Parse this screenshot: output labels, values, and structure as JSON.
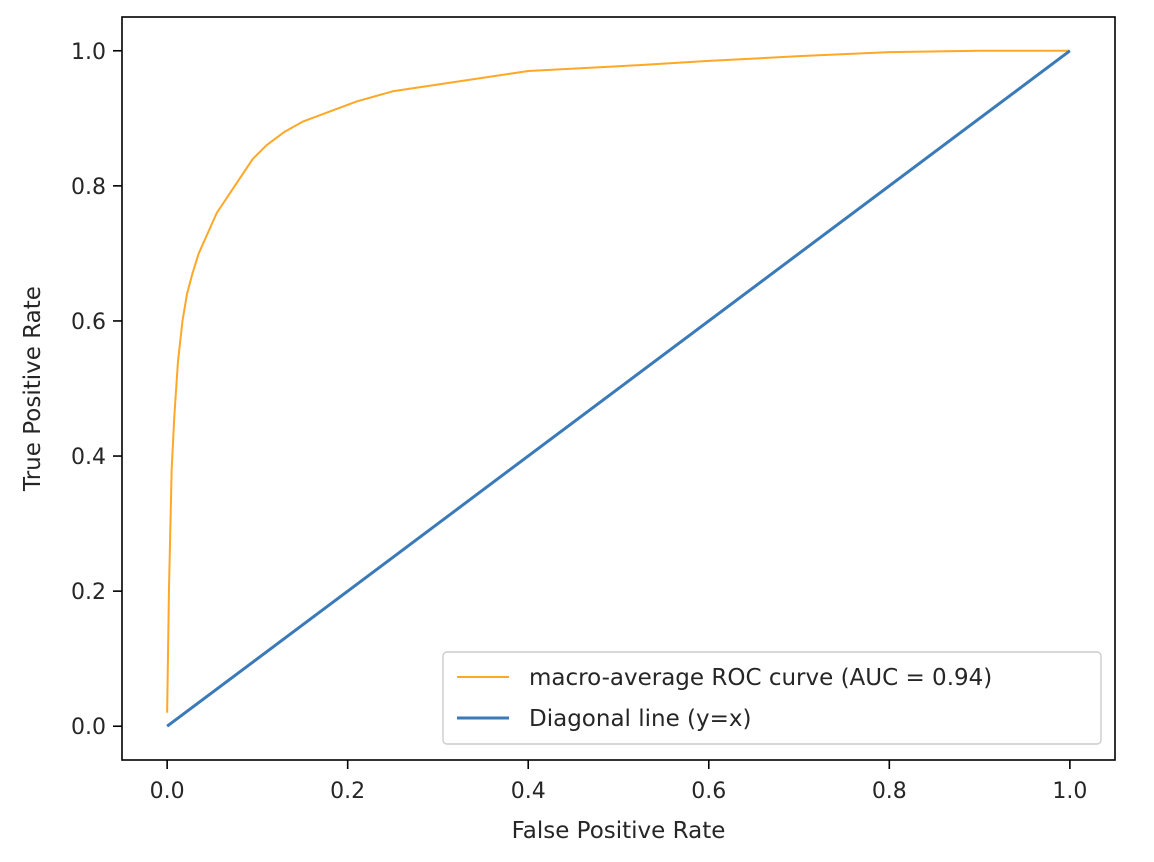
{
  "chart_data": {
    "type": "line",
    "title": "",
    "xlabel": "False Positive Rate",
    "ylabel": "True Positive Rate",
    "xlim": [
      -0.05,
      1.05
    ],
    "ylim": [
      -0.05,
      1.05
    ],
    "xticks": [
      0.0,
      0.2,
      0.4,
      0.6,
      0.8,
      1.0
    ],
    "yticks": [
      0.0,
      0.2,
      0.4,
      0.6,
      0.8,
      1.0
    ],
    "xtick_labels": [
      "0.0",
      "0.2",
      "0.4",
      "0.6",
      "0.8",
      "1.0"
    ],
    "ytick_labels": [
      "0.0",
      "0.2",
      "0.4",
      "0.6",
      "0.8",
      "1.0"
    ],
    "grid": false,
    "legend_position": "lower-right",
    "series": [
      {
        "name": "macro-average ROC curve (AUC = 0.94)",
        "color": "#ffa726",
        "x": [
          0.0,
          0.002,
          0.005,
          0.008,
          0.012,
          0.017,
          0.022,
          0.028,
          0.035,
          0.045,
          0.055,
          0.065,
          0.08,
          0.095,
          0.11,
          0.13,
          0.15,
          0.18,
          0.21,
          0.25,
          0.3,
          0.35,
          0.4,
          0.5,
          0.6,
          0.7,
          0.8,
          0.9,
          1.0
        ],
        "y": [
          0.02,
          0.2,
          0.38,
          0.46,
          0.54,
          0.6,
          0.64,
          0.67,
          0.7,
          0.73,
          0.76,
          0.78,
          0.81,
          0.84,
          0.86,
          0.88,
          0.895,
          0.91,
          0.925,
          0.94,
          0.95,
          0.96,
          0.97,
          0.977,
          0.985,
          0.992,
          0.998,
          1.0,
          1.0
        ]
      },
      {
        "name": "Diagonal line (y=x)",
        "color": "#3a7ab8",
        "x": [
          0.0,
          1.0
        ],
        "y": [
          0.0,
          1.0
        ]
      }
    ]
  }
}
